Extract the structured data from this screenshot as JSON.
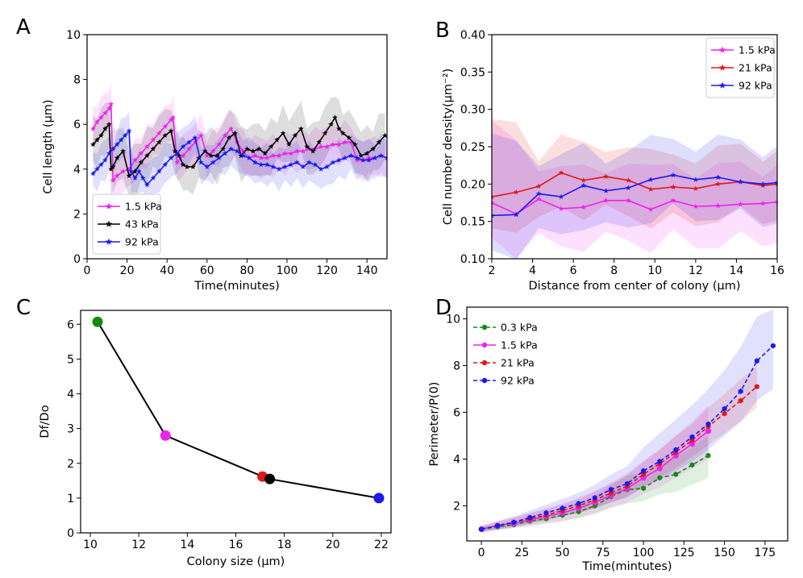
{
  "chart_data": [
    {
      "panel": "A",
      "type": "line",
      "xlabel": "Time(minutes)",
      "ylabel": "Cell length (μm)",
      "xlim": [
        0,
        150
      ],
      "ylim": [
        0,
        10
      ],
      "xticks": [
        0,
        20,
        40,
        60,
        80,
        100,
        120,
        140
      ],
      "yticks": [
        0,
        2,
        4,
        6,
        8,
        10
      ],
      "grid": false,
      "legend_position": "bottom-left",
      "series": [
        {
          "name": "1.5 kPa",
          "color": "#ee22ee",
          "marker": "star",
          "band": 1.0,
          "x": [
            3,
            5,
            7,
            9,
            11,
            12,
            13,
            15,
            18,
            21,
            24,
            27,
            30,
            33,
            36,
            39,
            42,
            43,
            45,
            48,
            51,
            54,
            57,
            60,
            63,
            66,
            69,
            72,
            75,
            78,
            81,
            84,
            87,
            90,
            93,
            96,
            99,
            102,
            105,
            108,
            111,
            114,
            117,
            120,
            123,
            126,
            129,
            132,
            135,
            138,
            141,
            144,
            147,
            150
          ],
          "y": [
            5.8,
            6.1,
            6.3,
            6.5,
            6.7,
            6.9,
            3.5,
            3.7,
            3.9,
            4.0,
            4.4,
            4.7,
            5.0,
            5.3,
            5.6,
            5.9,
            6.2,
            6.3,
            4.3,
            4.6,
            4.9,
            5.2,
            5.5,
            4.6,
            4.8,
            5.1,
            5.5,
            5.8,
            5.2,
            4.8,
            4.5,
            4.6,
            4.5,
            4.5,
            4.6,
            4.6,
            4.7,
            4.7,
            4.8,
            4.8,
            4.9,
            4.9,
            5.0,
            5.0,
            5.1,
            5.1,
            5.2,
            5.2,
            4.4,
            4.4,
            4.5,
            4.5,
            4.6,
            4.5
          ]
        },
        {
          "name": "43 kPa",
          "color": "#000000",
          "marker": "star",
          "band": 1.3,
          "x": [
            3,
            5,
            7,
            9,
            11,
            12,
            13,
            15,
            18,
            21,
            24,
            27,
            30,
            33,
            36,
            39,
            42,
            44,
            46,
            48,
            50,
            53,
            56,
            59,
            62,
            65,
            68,
            71,
            74,
            77,
            80,
            83,
            86,
            89,
            92,
            95,
            98,
            101,
            104,
            107,
            110,
            113,
            116,
            119,
            122,
            124,
            126,
            128,
            131,
            134,
            137,
            140,
            143,
            146,
            149
          ],
          "y": [
            5.1,
            5.3,
            5.5,
            5.8,
            6.0,
            4.0,
            4.1,
            4.5,
            4.8,
            3.7,
            3.9,
            4.3,
            4.6,
            4.9,
            5.2,
            5.5,
            5.7,
            4.8,
            4.6,
            4.2,
            4.1,
            4.1,
            4.5,
            4.8,
            4.6,
            4.6,
            4.9,
            5.4,
            5.6,
            4.6,
            4.9,
            4.8,
            4.9,
            4.7,
            5.0,
            5.3,
            5.6,
            5.1,
            5.5,
            5.8,
            5.0,
            4.8,
            5.2,
            5.6,
            6.0,
            6.3,
            5.8,
            5.6,
            5.4,
            5.1,
            4.6,
            4.7,
            4.9,
            5.2,
            5.5
          ]
        },
        {
          "name": "92 kPa",
          "color": "#1a1aee",
          "marker": "star",
          "band": 1.0,
          "x": [
            3,
            5,
            7,
            9,
            11,
            13,
            15,
            17,
            19,
            21,
            22,
            24,
            26,
            28,
            30,
            33,
            36,
            39,
            42,
            45,
            48,
            51,
            54,
            57,
            60,
            63,
            66,
            69,
            72,
            75,
            78,
            81,
            84,
            87,
            90,
            93,
            96,
            99,
            102,
            105,
            108,
            111,
            114,
            117,
            120,
            123,
            126,
            129,
            132,
            135,
            138,
            141,
            144,
            147,
            150
          ],
          "y": [
            3.8,
            4.0,
            4.2,
            4.4,
            4.7,
            4.9,
            5.1,
            5.3,
            5.5,
            5.7,
            3.9,
            3.6,
            3.9,
            3.6,
            3.3,
            3.6,
            3.9,
            4.2,
            4.5,
            4.7,
            5.0,
            5.2,
            5.4,
            4.3,
            4.1,
            4.3,
            4.5,
            4.7,
            4.9,
            4.8,
            4.6,
            4.5,
            4.3,
            4.2,
            4.2,
            4.1,
            4.0,
            4.1,
            4.2,
            4.3,
            4.1,
            4.3,
            4.2,
            4.0,
            4.1,
            4.3,
            4.4,
            4.5,
            4.6,
            4.5,
            4.4,
            4.4,
            4.5,
            4.6,
            4.5
          ]
        }
      ]
    },
    {
      "panel": "B",
      "type": "line",
      "xlabel": "Distance from center of colony (μm)",
      "ylabel": "Cell number density(μm⁻²)",
      "xlim": [
        2,
        16
      ],
      "ylim": [
        0.1,
        0.4
      ],
      "xticks": [
        2,
        4,
        6,
        8,
        10,
        12,
        14,
        16
      ],
      "yticks": [
        0.1,
        0.15,
        0.2,
        0.25,
        0.3,
        0.35,
        0.4
      ],
      "grid": false,
      "legend_position": "top-right",
      "series": [
        {
          "name": "1.5 kPa",
          "color": "#ee22ee",
          "marker": "star",
          "band": 0.05,
          "x": [
            2,
            3.2,
            4.3,
            5.4,
            6.5,
            7.6,
            8.7,
            9.8,
            10.9,
            12,
            13.1,
            14.2,
            15.3,
            16
          ],
          "y": [
            0.175,
            0.16,
            0.18,
            0.167,
            0.169,
            0.178,
            0.178,
            0.166,
            0.178,
            0.17,
            0.171,
            0.173,
            0.174,
            0.176
          ]
        },
        {
          "name": "21 kPa",
          "color": "#e01818",
          "marker": "star",
          "band": 0.045,
          "x": [
            2,
            3.2,
            4.3,
            5.4,
            6.5,
            7.6,
            8.7,
            9.8,
            10.9,
            12,
            13.1,
            14.2,
            15.3,
            16
          ],
          "y": [
            0.183,
            0.189,
            0.197,
            0.215,
            0.205,
            0.21,
            0.205,
            0.193,
            0.196,
            0.194,
            0.2,
            0.203,
            0.198,
            0.2
          ]
        },
        {
          "name": "92 kPa",
          "color": "#1a1aee",
          "marker": "star",
          "band": 0.05,
          "x": [
            2,
            3.2,
            4.3,
            5.4,
            6.5,
            7.6,
            8.7,
            9.8,
            10.9,
            12,
            13.1,
            14.2,
            15.3,
            16
          ],
          "y": [
            0.158,
            0.159,
            0.187,
            0.183,
            0.198,
            0.191,
            0.195,
            0.206,
            0.212,
            0.206,
            0.209,
            0.203,
            0.2,
            0.202
          ]
        }
      ]
    },
    {
      "panel": "C",
      "type": "scatter",
      "xlabel": "Colony size (μm)",
      "ylabel": "Df/Do",
      "xlim": [
        9.6,
        22.4
      ],
      "ylim": [
        0,
        6.4
      ],
      "xticks": [
        10,
        12,
        14,
        16,
        18,
        20,
        22
      ],
      "yticks": [
        0,
        1,
        2,
        3,
        4,
        5,
        6
      ],
      "grid": false,
      "line_color": "#000000",
      "points": [
        {
          "x": 10.3,
          "y": 6.07,
          "color": "#138a13"
        },
        {
          "x": 13.1,
          "y": 2.8,
          "color": "#ee22ee"
        },
        {
          "x": 17.1,
          "y": 1.62,
          "color": "#e01818"
        },
        {
          "x": 17.4,
          "y": 1.55,
          "color": "#000000"
        },
        {
          "x": 21.9,
          "y": 1.0,
          "color": "#1a1aee"
        }
      ]
    },
    {
      "panel": "D",
      "type": "line",
      "xlabel": "Time(mintutes)",
      "ylabel": "Perimeter/P(0)",
      "xlim": [
        -9,
        189
      ],
      "ylim": [
        0.5,
        10.5
      ],
      "xticks": [
        0,
        25,
        50,
        75,
        100,
        125,
        150,
        175
      ],
      "yticks": [
        2,
        4,
        6,
        8,
        10
      ],
      "grid": false,
      "legend_position": "top-left",
      "series": [
        {
          "name": "0.3 kPa",
          "color": "#138a13",
          "dashed": true,
          "marker": "dot",
          "x": [
            0,
            10,
            20,
            30,
            40,
            50,
            60,
            70,
            80,
            90,
            100,
            110,
            120,
            130,
            140
          ],
          "y": [
            1.0,
            1.1,
            1.2,
            1.35,
            1.45,
            1.6,
            1.75,
            2.0,
            2.4,
            2.7,
            2.75,
            3.2,
            3.35,
            3.75,
            4.15
          ],
          "lower": [
            0.9,
            1.0,
            1.05,
            1.15,
            1.25,
            1.35,
            1.45,
            1.65,
            1.9,
            2.1,
            2.2,
            2.5,
            2.6,
            2.9,
            3.2
          ],
          "upper": [
            1.1,
            1.2,
            1.35,
            1.55,
            1.7,
            1.85,
            2.1,
            2.4,
            2.9,
            3.3,
            3.4,
            3.9,
            4.1,
            4.5,
            5.0
          ]
        },
        {
          "name": "1.5 kPa",
          "color": "#ee22ee",
          "dashed": false,
          "marker": "dot",
          "x": [
            0,
            10,
            20,
            30,
            40,
            50,
            60,
            70,
            80,
            90,
            100,
            110,
            120,
            130,
            140
          ],
          "y": [
            1.0,
            1.15,
            1.25,
            1.4,
            1.55,
            1.7,
            1.9,
            2.15,
            2.45,
            2.75,
            3.2,
            3.6,
            4.15,
            4.65,
            5.2
          ],
          "lower": [
            0.85,
            0.95,
            1.05,
            1.15,
            1.25,
            1.35,
            1.5,
            1.7,
            1.95,
            2.15,
            2.5,
            2.8,
            3.2,
            3.6,
            4.0
          ],
          "upper": [
            1.15,
            1.35,
            1.5,
            1.7,
            1.9,
            2.1,
            2.35,
            2.65,
            3.0,
            3.4,
            3.9,
            4.4,
            5.0,
            5.6,
            6.3
          ]
        },
        {
          "name": "21 kPa",
          "color": "#e01818",
          "dashed": true,
          "marker": "dot",
          "x": [
            0,
            10,
            20,
            30,
            40,
            50,
            60,
            70,
            80,
            90,
            100,
            110,
            120,
            130,
            140,
            150,
            160,
            170
          ],
          "y": [
            1.0,
            1.15,
            1.3,
            1.45,
            1.6,
            1.8,
            2.0,
            2.25,
            2.55,
            2.85,
            3.35,
            3.8,
            4.3,
            4.8,
            5.4,
            5.95,
            6.5,
            7.1
          ],
          "lower": [
            0.9,
            1.0,
            1.1,
            1.25,
            1.4,
            1.55,
            1.7,
            1.9,
            2.15,
            2.4,
            2.8,
            3.2,
            3.6,
            4.1,
            4.6,
            5.1,
            5.6,
            6.2
          ],
          "upper": [
            1.1,
            1.3,
            1.5,
            1.7,
            1.85,
            2.05,
            2.3,
            2.6,
            2.95,
            3.3,
            3.9,
            4.4,
            5.0,
            5.5,
            6.2,
            6.8,
            7.4,
            8.0
          ]
        },
        {
          "name": "92 kPa",
          "color": "#1a1aee",
          "dashed": true,
          "marker": "dot",
          "x": [
            0,
            10,
            20,
            30,
            40,
            50,
            60,
            70,
            80,
            90,
            100,
            110,
            120,
            130,
            140,
            150,
            160,
            170,
            180
          ],
          "y": [
            1.0,
            1.15,
            1.3,
            1.5,
            1.7,
            1.9,
            2.1,
            2.35,
            2.7,
            2.95,
            3.5,
            3.9,
            4.4,
            4.95,
            5.5,
            6.15,
            6.9,
            8.2,
            8.85
          ],
          "lower": [
            0.85,
            1.0,
            1.1,
            1.25,
            1.4,
            1.55,
            1.7,
            1.9,
            2.15,
            2.35,
            2.8,
            3.1,
            3.5,
            3.9,
            4.4,
            5.0,
            5.6,
            6.5,
            7.0
          ],
          "upper": [
            1.15,
            1.35,
            1.55,
            1.8,
            2.05,
            2.3,
            2.55,
            2.9,
            3.35,
            3.7,
            4.5,
            5.1,
            5.7,
            6.3,
            7.0,
            7.8,
            8.8,
            10.1,
            10.4
          ]
        }
      ]
    }
  ],
  "panels": {
    "A": {
      "letter": "A"
    },
    "B": {
      "letter": "B"
    },
    "C": {
      "letter": "C"
    },
    "D": {
      "letter": "D"
    }
  }
}
